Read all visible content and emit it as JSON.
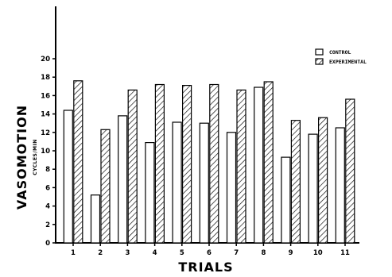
{
  "chart_data": {
    "type": "bar",
    "title": "",
    "xlabel": "TRIALS",
    "ylabel": "VASOMOTION",
    "ylabel_unit": "CYCLES/MIN",
    "categories": [
      "1",
      "2",
      "3",
      "4",
      "5",
      "6",
      "7",
      "8",
      "9",
      "10",
      "11"
    ],
    "ylim": [
      0,
      20
    ],
    "yticks": [
      "0",
      "2",
      "4",
      "6",
      "8",
      "10",
      "12",
      "14",
      "16",
      "18",
      "20"
    ],
    "series": [
      {
        "name": "CONTROL",
        "pattern": "solid-white",
        "values": [
          14.4,
          5.2,
          13.8,
          10.9,
          13.1,
          13.0,
          12.0,
          16.9,
          9.3,
          11.8,
          12.5
        ]
      },
      {
        "name": "EXPERIMENTAL",
        "pattern": "hatched",
        "values": [
          17.6,
          12.3,
          16.6,
          17.2,
          17.1,
          17.2,
          16.6,
          17.5,
          13.3,
          13.6,
          15.6
        ]
      }
    ],
    "grid": false,
    "legend_position": "top-right"
  }
}
